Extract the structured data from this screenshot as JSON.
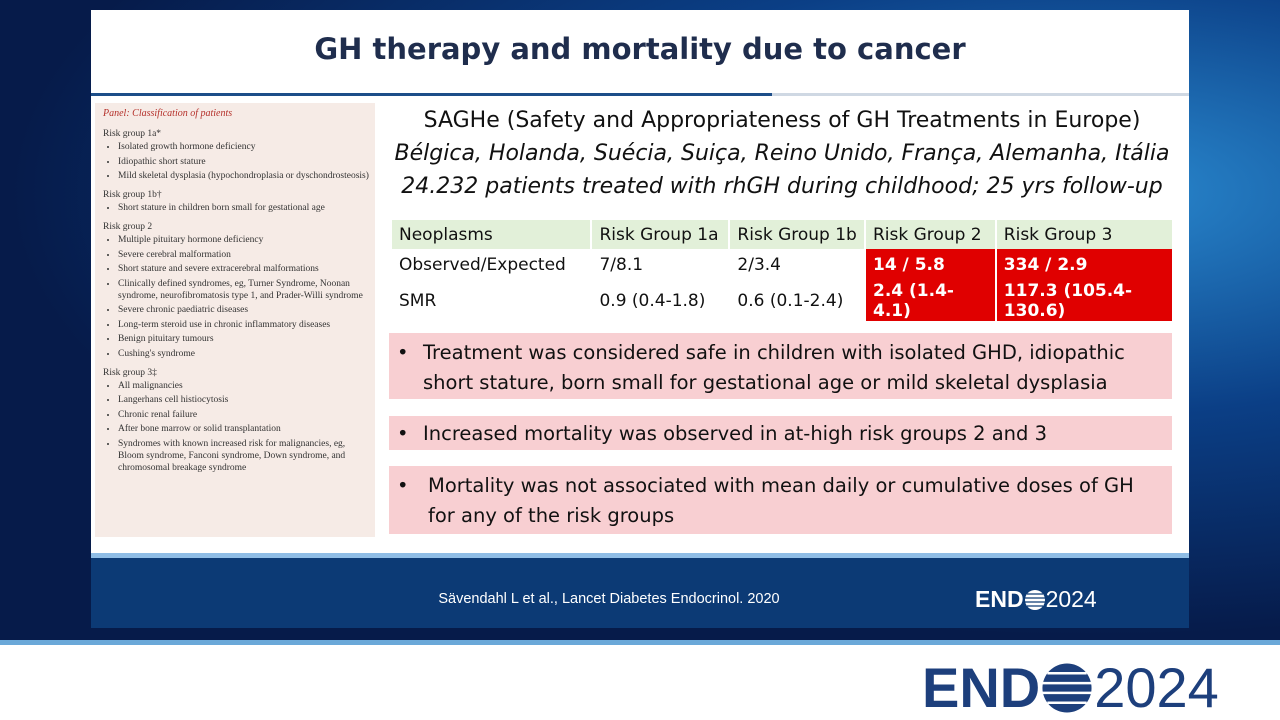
{
  "slide": {
    "title": "GH therapy and mortality due to cancer",
    "panel": {
      "title": "Panel: Classification of patients",
      "groups": [
        {
          "heading": "Risk group 1a*",
          "items": [
            "Isolated growth hormone deficiency",
            "Idiopathic short stature",
            "Mild skeletal dysplasia (hypochondroplasia or dyschondrosteosis)"
          ]
        },
        {
          "heading": "Risk group 1b†",
          "items": [
            "Short stature in children born small for gestational age"
          ]
        },
        {
          "heading": "Risk group 2",
          "items": [
            "Multiple pituitary hormone deficiency",
            "Severe cerebral malformation",
            "Short stature and severe extracerebral malformations",
            "Clinically defined syndromes, eg, Turner Syndrome, Noonan syndrome, neurofibromatosis type 1, and Prader-Willi syndrome",
            "Severe chronic paediatric diseases",
            "Long-term steroid use in chronic inflammatory diseases",
            "Benign pituitary tumours",
            "Cushing's syndrome"
          ]
        },
        {
          "heading": "Risk group 3‡",
          "items": [
            "All malignancies",
            "Langerhans cell histiocytosis",
            "Chronic renal failure",
            "After bone marrow or solid transplantation",
            "Syndromes with known increased risk for malignancies, eg, Bloom syndrome, Fanconi syndrome, Down syndrome, and chromosomal breakage syndrome"
          ]
        }
      ]
    },
    "study": {
      "name": "SAGHe (Safety and Appropriateness of GH Treatments in Europe)",
      "countries": "Bélgica, Holanda, Suécia, Suiça, Reino Unido, França, Alemanha, Itália",
      "cohort": "24.232 patients treated with rhGH during childhood; 25 yrs follow-up"
    },
    "table": {
      "header": [
        "Neoplasms",
        "Risk Group 1a",
        "Risk Group 1b",
        "Risk Group 2",
        "Risk Group 3"
      ],
      "rows": [
        [
          "Observed/Expected",
          "7/8.1",
          "2/3.4",
          "14 / 5.8",
          "334 / 2.9"
        ],
        [
          "SMR",
          "0.9 (0.4-1.8)",
          "0.6 (0.1-2.4)",
          "2.4 (1.4-4.1)",
          "117.3 (105.4-130.6)"
        ]
      ]
    },
    "bullets": [
      "Treatment was considered safe in children with isolated GHD, idiopathic short stature, born small for gestational age or mild skeletal dysplasia",
      "Increased mortality was observed in at-high risk groups 2 and 3",
      "Mortality was not associated with mean daily or cumulative doses of GH for any of the risk groups"
    ],
    "footer": {
      "citation": "Sävendahl L et al., Lancet Diabetes Endocrinol. 2020",
      "logo_left": "END",
      "logo_right": "2024"
    }
  },
  "banner": {
    "logo_left": "END",
    "logo_right": "2024"
  }
}
